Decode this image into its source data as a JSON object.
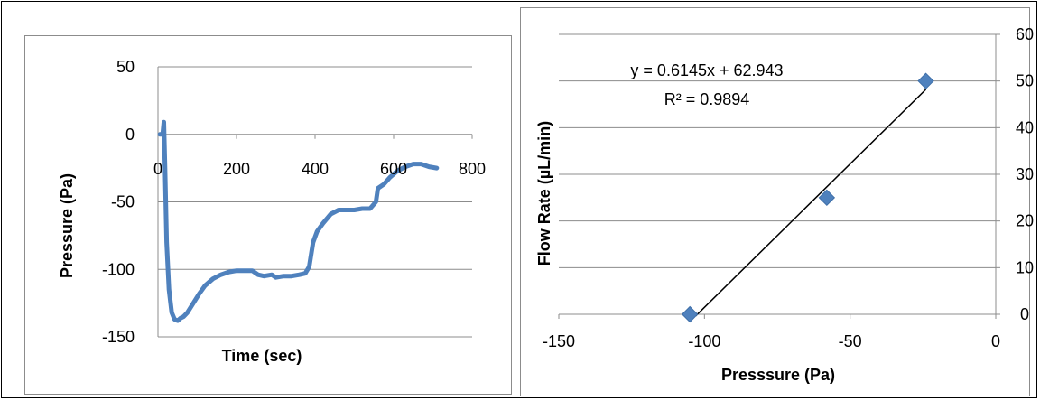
{
  "chart_data": [
    {
      "type": "line",
      "title": "",
      "xlabel": "Time (sec)",
      "ylabel": "Pressure (Pa)",
      "xlim": [
        0,
        800
      ],
      "ylim": [
        -150,
        50
      ],
      "xticks": [
        "0",
        "200",
        "400",
        "600",
        "800"
      ],
      "yticks": [
        "50",
        "0",
        "-50",
        "-100",
        "-150"
      ],
      "grid": "horizontal",
      "series": [
        {
          "color": "#4f81bd",
          "x": [
            5,
            12,
            15,
            18,
            22,
            28,
            35,
            42,
            50,
            58,
            65,
            75,
            90,
            105,
            120,
            140,
            160,
            180,
            200,
            220,
            240,
            255,
            270,
            290,
            300,
            320,
            340,
            360,
            375,
            385,
            395,
            405,
            420,
            440,
            460,
            480,
            500,
            520,
            540,
            555,
            560,
            575,
            590,
            610,
            630,
            650,
            670,
            690,
            710
          ],
          "y": [
            0,
            0,
            9,
            -25,
            -80,
            -115,
            -132,
            -137,
            -138,
            -136,
            -135,
            -132,
            -125,
            -118,
            -112,
            -107,
            -104,
            -102,
            -101,
            -101,
            -101,
            -104,
            -105,
            -104,
            -106,
            -105,
            -105,
            -104,
            -103,
            -98,
            -80,
            -72,
            -66,
            -59,
            -56,
            -56,
            -56,
            -55,
            -55,
            -50,
            -40,
            -37,
            -32,
            -27,
            -24,
            -22,
            -22,
            -24,
            -25
          ]
        }
      ]
    },
    {
      "type": "scatter",
      "title": "",
      "xlabel": "Presssure (Pa)",
      "ylabel": "Flow Rate (µL/min)",
      "xlim": [
        -150,
        0
      ],
      "ylim": [
        0,
        60
      ],
      "xticks": [
        "-150",
        "-100",
        "-50",
        "0"
      ],
      "yticks": [
        "0",
        "10",
        "20",
        "30",
        "40",
        "50",
        "60"
      ],
      "grid": "horizontal",
      "series": [
        {
          "color": "#4f81bd",
          "x": [
            -105,
            -58,
            -24
          ],
          "y": [
            0,
            25,
            50
          ]
        }
      ],
      "trendline": {
        "slope": 0.6145,
        "intercept": 62.943,
        "x_range": [
          -103,
          -24
        ]
      },
      "annotation": {
        "equation": "y = 0.6145x + 62.943",
        "r2": "R² = 0.9894"
      }
    }
  ]
}
